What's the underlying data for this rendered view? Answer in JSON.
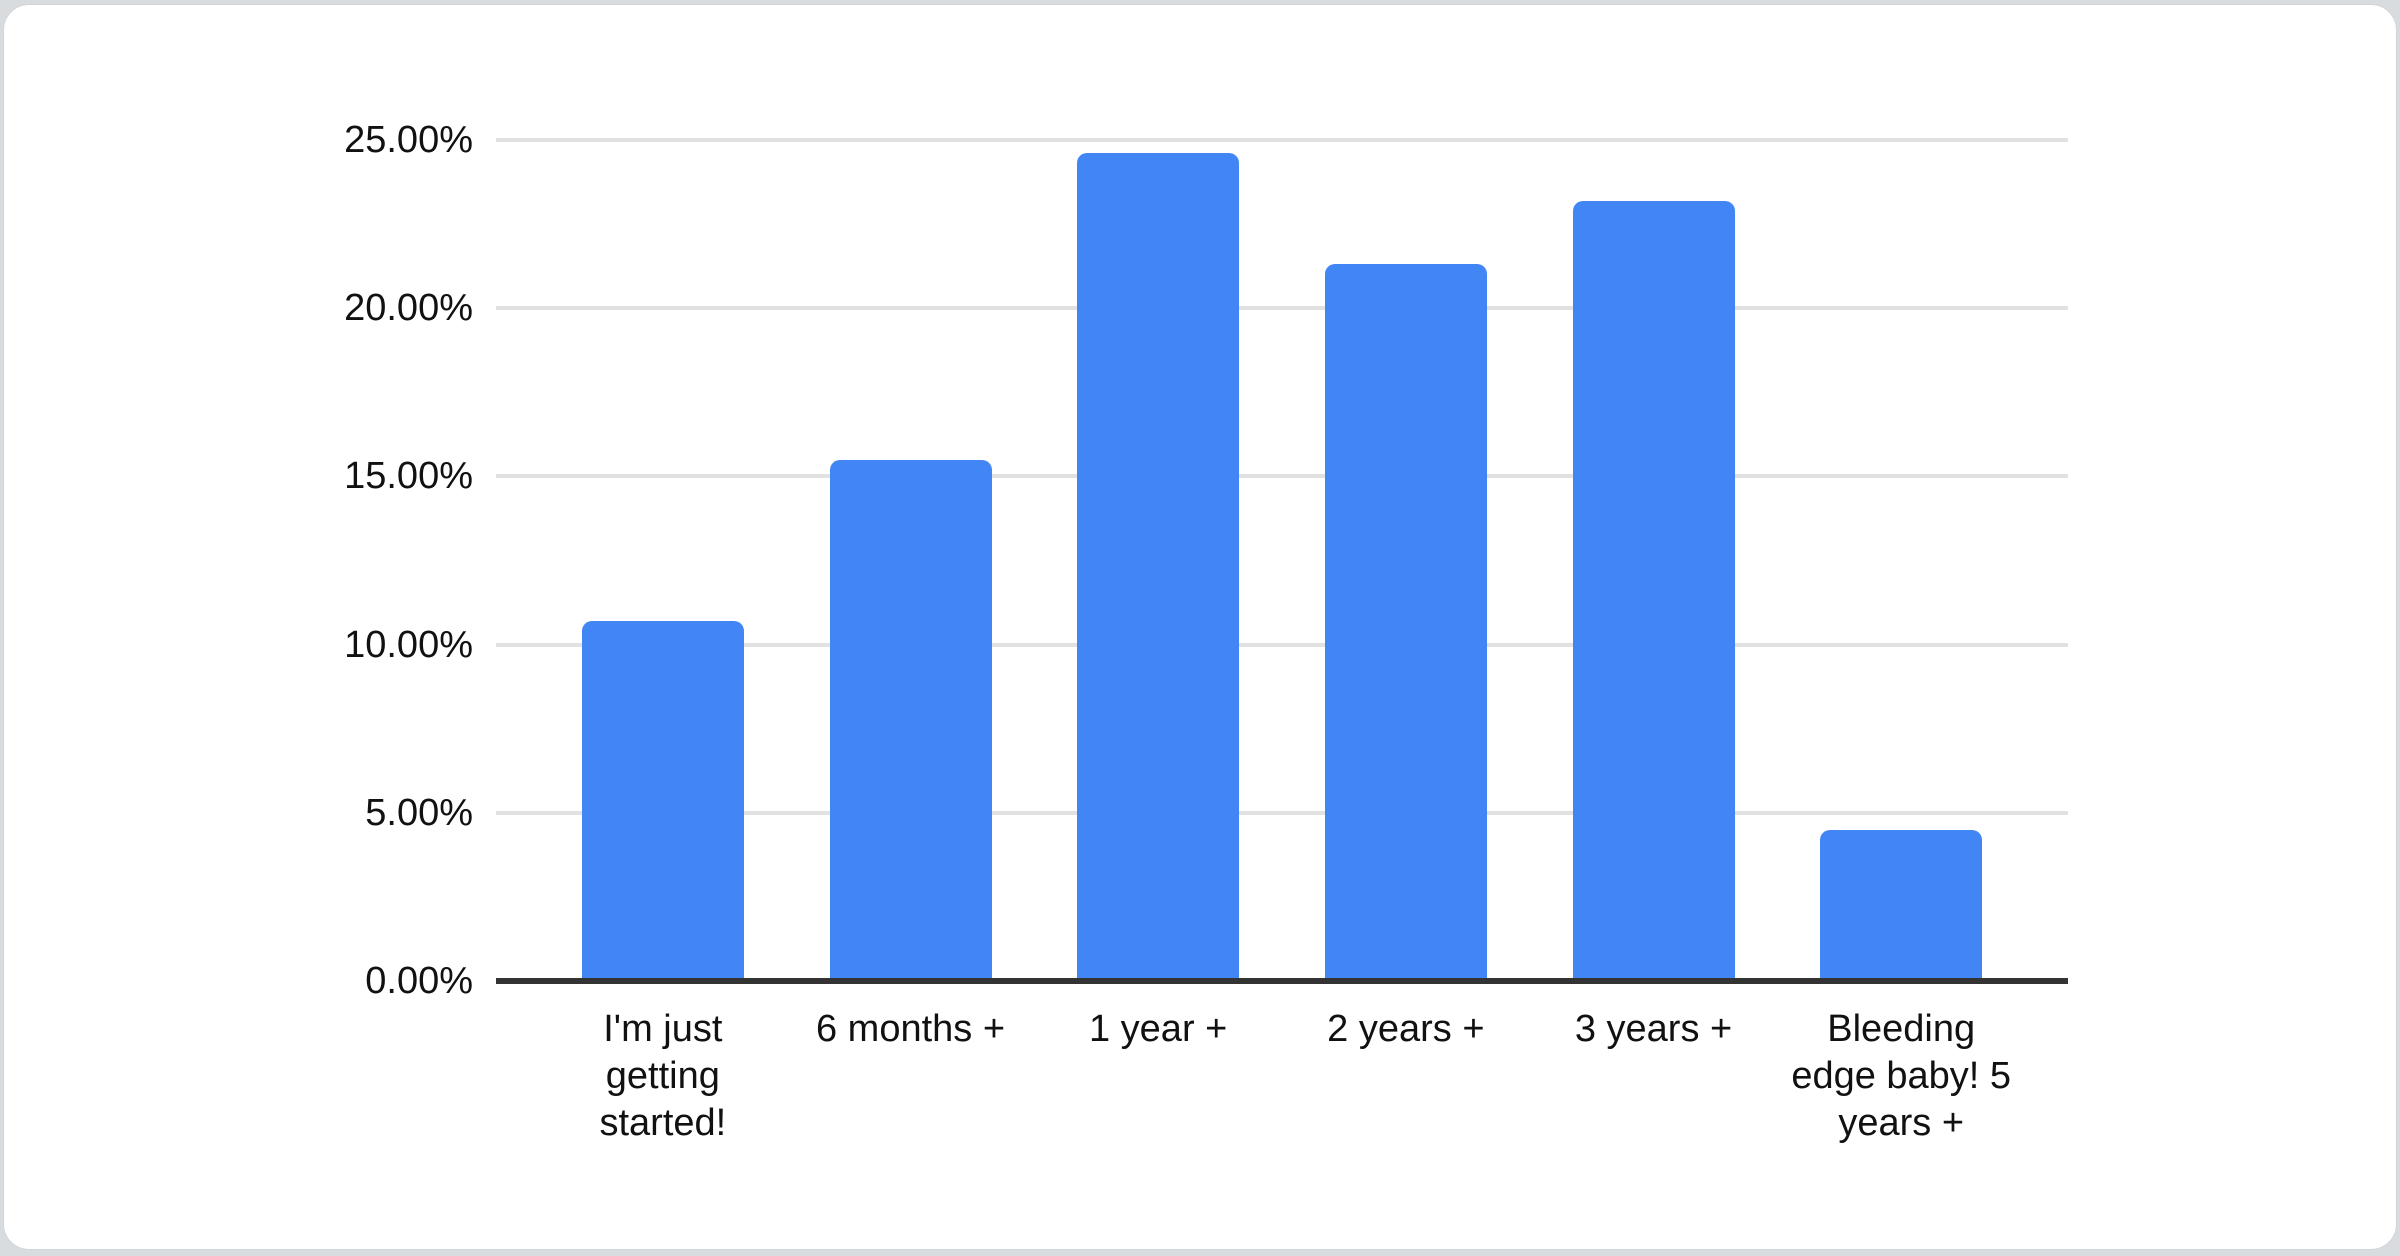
{
  "page": {
    "background_color": "#d9dcdf",
    "card_background_color": "#ffffff",
    "card_border_color": "#d3d6d9"
  },
  "chart_data": {
    "type": "bar",
    "title": "",
    "xlabel": "",
    "ylabel": "",
    "categories": [
      "I'm just getting started!",
      "6 months +",
      "1 year +",
      "2 years +",
      "3 years +",
      "Bleeding edge baby! 5 years +"
    ],
    "values": [
      10.7,
      15.5,
      24.6,
      21.3,
      23.2,
      4.5
    ],
    "value_unit": "%",
    "ylim": [
      0,
      25
    ],
    "y_ticks": [
      {
        "value": 0,
        "label": "0.00%"
      },
      {
        "value": 5,
        "label": "5.00%"
      },
      {
        "value": 10,
        "label": "10.00%"
      },
      {
        "value": 15,
        "label": "15.00%"
      },
      {
        "value": 20,
        "label": "20.00%"
      },
      {
        "value": 25,
        "label": "25.00%"
      }
    ],
    "grid": "horizontal",
    "legend": "none",
    "bar_color": "#4285f4",
    "gridline_color": "#e1e1e1",
    "axis_line_color": "#333333",
    "label_color": "#111111"
  }
}
